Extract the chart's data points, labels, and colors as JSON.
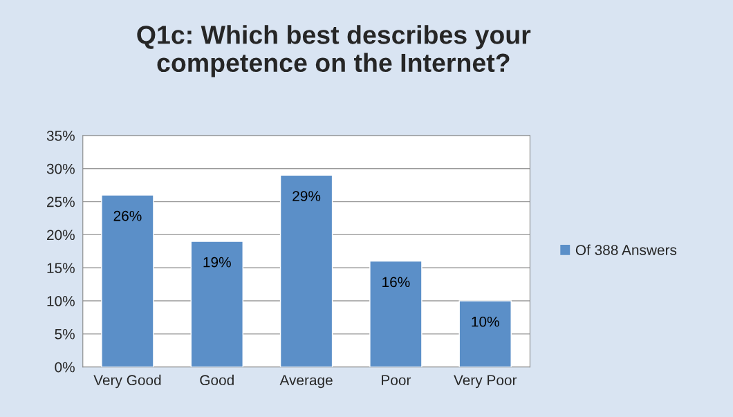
{
  "chart_data": {
    "type": "bar",
    "title": "Q1c: Which best describes your\ncompetence on the Internet?",
    "categories": [
      "Very Good",
      "Good",
      "Average",
      "Poor",
      "Very Poor"
    ],
    "series": [
      {
        "name": "Of 388 Answers",
        "color": "#5b8fc8",
        "values": [
          26,
          19,
          29,
          16,
          10
        ],
        "value_labels": [
          "26%",
          "19%",
          "29%",
          "16%",
          "10%"
        ]
      }
    ],
    "ylim": [
      0,
      35
    ],
    "yticks": [
      {
        "value": 0,
        "label": "0%"
      },
      {
        "value": 5,
        "label": "5%"
      },
      {
        "value": 10,
        "label": "10%"
      },
      {
        "value": 15,
        "label": "15%"
      },
      {
        "value": 20,
        "label": "20%"
      },
      {
        "value": 25,
        "label": "25%"
      },
      {
        "value": 30,
        "label": "30%"
      },
      {
        "value": 35,
        "label": "35%"
      }
    ],
    "grid": "y",
    "legend": "right"
  }
}
